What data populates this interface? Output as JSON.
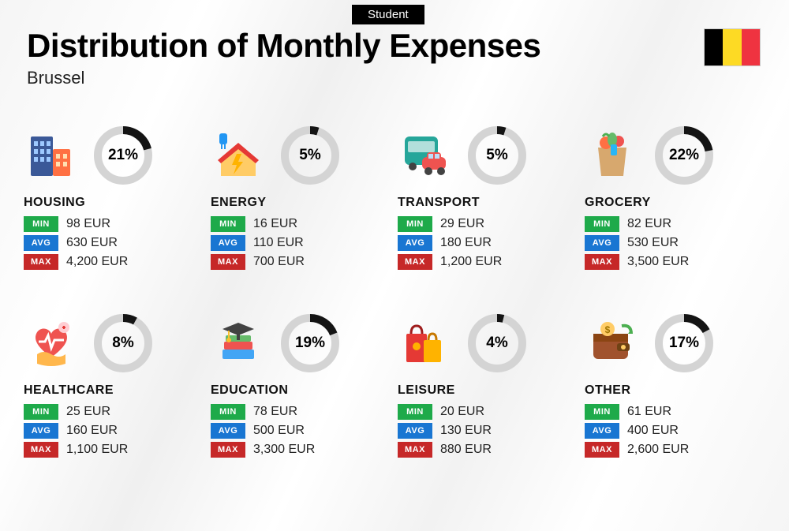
{
  "subtitle": "Student",
  "title": "Distribution of Monthly Expenses",
  "city": "Brussel",
  "flag_colors": [
    "#000000",
    "#fdda24",
    "#ef3340"
  ],
  "donut": {
    "radius": 32,
    "stroke_width": 10,
    "track_color": "#d4d4d4",
    "fill_color": "#141414"
  },
  "tag_labels": {
    "min": "MIN",
    "avg": "AVG",
    "max": "MAX"
  },
  "tag_colors": {
    "min": "#1eaa4a",
    "avg": "#1976d2",
    "max": "#c62828"
  },
  "currency": "EUR",
  "categories": [
    {
      "label": "HOUSING",
      "pct": 21,
      "min": "98 EUR",
      "avg": "630 EUR",
      "max": "4,200 EUR",
      "icon": "buildings"
    },
    {
      "label": "ENERGY",
      "pct": 5,
      "min": "16 EUR",
      "avg": "110 EUR",
      "max": "700 EUR",
      "icon": "energy-house"
    },
    {
      "label": "TRANSPORT",
      "pct": 5,
      "min": "29 EUR",
      "avg": "180 EUR",
      "max": "1,200 EUR",
      "icon": "bus-car"
    },
    {
      "label": "GROCERY",
      "pct": 22,
      "min": "82 EUR",
      "avg": "530 EUR",
      "max": "3,500 EUR",
      "icon": "grocery-bag"
    },
    {
      "label": "HEALTHCARE",
      "pct": 8,
      "min": "25 EUR",
      "avg": "160 EUR",
      "max": "1,100 EUR",
      "icon": "heart-care"
    },
    {
      "label": "EDUCATION",
      "pct": 19,
      "min": "78 EUR",
      "avg": "500 EUR",
      "max": "3,300 EUR",
      "icon": "books-cap"
    },
    {
      "label": "LEISURE",
      "pct": 4,
      "min": "20 EUR",
      "avg": "130 EUR",
      "max": "880 EUR",
      "icon": "shopping-bags"
    },
    {
      "label": "OTHER",
      "pct": 17,
      "min": "61 EUR",
      "avg": "400 EUR",
      "max": "2,600 EUR",
      "icon": "wallet"
    }
  ]
}
